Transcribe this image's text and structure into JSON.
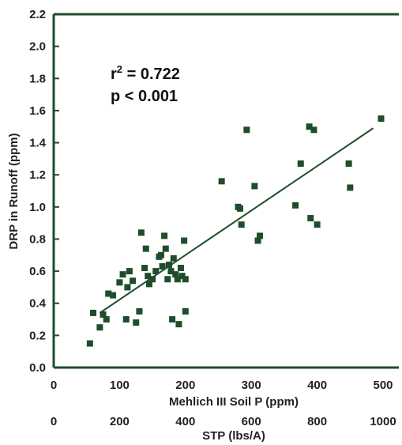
{
  "chart_data": {
    "type": "scatter",
    "ylabel": "DRP in Runoff (ppm)",
    "xlabel": "Mehlich III Soil P (ppm)",
    "xlabel2": "STP (lbs/A)",
    "xlim": [
      0,
      500
    ],
    "ylim": [
      0.0,
      2.2
    ],
    "x_ticks": [
      "0",
      "100",
      "200",
      "300",
      "400",
      "500"
    ],
    "x2_ticks": [
      "0",
      "200",
      "400",
      "600",
      "800",
      "1000"
    ],
    "y_ticks": [
      "0.0",
      "0.2",
      "0.4",
      "0.6",
      "0.8",
      "1.0",
      "1.2",
      "1.4",
      "1.6",
      "1.8",
      "2.0",
      "2.2"
    ],
    "annotations": {
      "r2_prefix": "r",
      "r2_sup": "2",
      "r2_value": " = 0.722",
      "p_value": "p < 0.001"
    },
    "marker_color": "#1e4d2b",
    "line_color": "#1e4d2b",
    "trendline": {
      "x": [
        70,
        485
      ],
      "y": [
        0.34,
        1.49
      ]
    },
    "points": [
      {
        "x": 55,
        "y": 0.15
      },
      {
        "x": 60,
        "y": 0.34
      },
      {
        "x": 70,
        "y": 0.25
      },
      {
        "x": 75,
        "y": 0.33
      },
      {
        "x": 80,
        "y": 0.3
      },
      {
        "x": 83,
        "y": 0.46
      },
      {
        "x": 90,
        "y": 0.45
      },
      {
        "x": 100,
        "y": 0.53
      },
      {
        "x": 105,
        "y": 0.58
      },
      {
        "x": 110,
        "y": 0.3
      },
      {
        "x": 112,
        "y": 0.5
      },
      {
        "x": 115,
        "y": 0.6
      },
      {
        "x": 120,
        "y": 0.54
      },
      {
        "x": 125,
        "y": 0.28
      },
      {
        "x": 130,
        "y": 0.35
      },
      {
        "x": 133,
        "y": 0.84
      },
      {
        "x": 138,
        "y": 0.62
      },
      {
        "x": 140,
        "y": 0.74
      },
      {
        "x": 143,
        "y": 0.57
      },
      {
        "x": 145,
        "y": 0.52
      },
      {
        "x": 150,
        "y": 0.55
      },
      {
        "x": 155,
        "y": 0.6
      },
      {
        "x": 160,
        "y": 0.69
      },
      {
        "x": 163,
        "y": 0.7
      },
      {
        "x": 165,
        "y": 0.63
      },
      {
        "x": 168,
        "y": 0.82
      },
      {
        "x": 170,
        "y": 0.74
      },
      {
        "x": 173,
        "y": 0.55
      },
      {
        "x": 175,
        "y": 0.64
      },
      {
        "x": 178,
        "y": 0.6
      },
      {
        "x": 180,
        "y": 0.3
      },
      {
        "x": 182,
        "y": 0.68
      },
      {
        "x": 185,
        "y": 0.58
      },
      {
        "x": 188,
        "y": 0.55
      },
      {
        "x": 190,
        "y": 0.27
      },
      {
        "x": 193,
        "y": 0.62
      },
      {
        "x": 195,
        "y": 0.57
      },
      {
        "x": 198,
        "y": 0.79
      },
      {
        "x": 200,
        "y": 0.55
      },
      {
        "x": 200,
        "y": 0.35
      },
      {
        "x": 255,
        "y": 1.16
      },
      {
        "x": 280,
        "y": 1.0
      },
      {
        "x": 283,
        "y": 0.99
      },
      {
        "x": 285,
        "y": 0.89
      },
      {
        "x": 293,
        "y": 1.48
      },
      {
        "x": 305,
        "y": 1.13
      },
      {
        "x": 310,
        "y": 0.79
      },
      {
        "x": 313,
        "y": 0.82
      },
      {
        "x": 367,
        "y": 1.01
      },
      {
        "x": 375,
        "y": 1.27
      },
      {
        "x": 388,
        "y": 1.5
      },
      {
        "x": 390,
        "y": 0.93
      },
      {
        "x": 395,
        "y": 1.48
      },
      {
        "x": 400,
        "y": 0.89
      },
      {
        "x": 448,
        "y": 1.27
      },
      {
        "x": 450,
        "y": 1.12
      },
      {
        "x": 497,
        "y": 1.55
      }
    ]
  }
}
